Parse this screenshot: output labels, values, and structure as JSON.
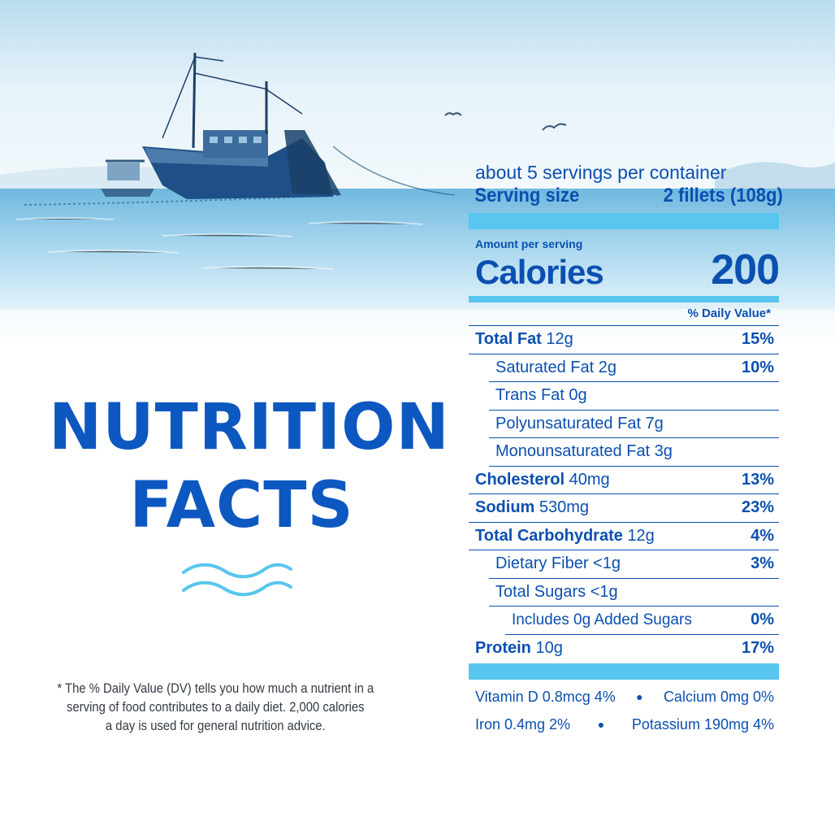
{
  "title": {
    "line1": "NUTRITION",
    "line2": "FACTS"
  },
  "footnote": {
    "line1": "* The % Daily Value (DV) tells you how much a nutrient in a",
    "line2": "serving of food contributes to a daily diet. 2,000 calories",
    "line3": "a day is used for general nutrition advice."
  },
  "label": {
    "servings_per_container": "about 5 servings per container",
    "serving_size_label": "Serving size",
    "serving_size_value": "2 fillets (108g)",
    "amount_per_serving": "Amount per serving",
    "calories_label": "Calories",
    "calories_value": "200",
    "daily_value_header": "% Daily Value*",
    "nutrients": [
      {
        "name": "Total Fat",
        "amount": "12g",
        "dv": "15%"
      },
      {
        "name": "Saturated Fat 2g",
        "dv": "10%"
      },
      {
        "name": "Trans Fat 0g",
        "dv": ""
      },
      {
        "name": "Polyunsaturated Fat 7g",
        "dv": ""
      },
      {
        "name": "Monounsaturated Fat 3g",
        "dv": ""
      },
      {
        "name": "Cholesterol",
        "amount": "40mg",
        "dv": "13%"
      },
      {
        "name": "Sodium",
        "amount": "530mg",
        "dv": "23%"
      },
      {
        "name": "Total Carbohydrate",
        "amount": "12g",
        "dv": "4%"
      },
      {
        "name": "Dietary Fiber <1g",
        "dv": "3%"
      },
      {
        "name": "Total Sugars <1g",
        "dv": ""
      },
      {
        "name": "Includes 0g Added Sugars",
        "dv": "0%"
      },
      {
        "name": "Protein",
        "amount": "10g",
        "dv": "17%"
      }
    ],
    "minerals": {
      "vitamin_d": "Vitamin D 0.8mcg 4%",
      "calcium": "Calcium 0mg 0%",
      "iron": "Iron 0.4mg 2%",
      "potassium": "Potassium 190mg  4%",
      "separator": "●"
    }
  },
  "colors": {
    "primary_blue": "#0b4fb0",
    "accent_cyan": "#58c6ee",
    "title_blue": "#0d58c0"
  },
  "icons": [
    "fishing-boat-illustration",
    "wave-icon"
  ]
}
